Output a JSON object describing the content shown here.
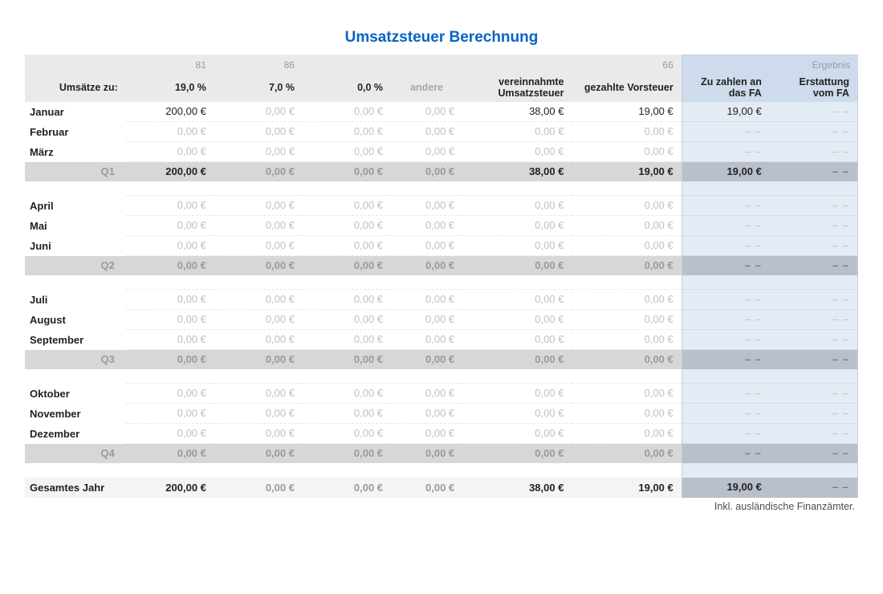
{
  "title": "Umsatzsteuer Berechnung",
  "header": {
    "codes": {
      "c19": "81",
      "c7": "86",
      "cVor": "66"
    },
    "group_label": "Umsätze zu:",
    "c19": "19,0 %",
    "c7": "7,0 %",
    "c0": "0,0 %",
    "other": "andere",
    "collected": "vereinnahmte Umsatzsteuer",
    "paid": "gezahlte Vorsteuer",
    "result_title": "Ergebnis",
    "to_pay": "Zu zahlen an das FA",
    "refund": "Erstattung vom FA"
  },
  "dash": "– –",
  "footnote": "Inkl. ausländische Finanzämter.",
  "rows": [
    {
      "type": "month",
      "label": "Januar",
      "c19": "200,00 €",
      "c19v": true,
      "c7": "0,00 €",
      "c0": "0,00 €",
      "other": "0,00 €",
      "coll": "38,00 €",
      "collv": true,
      "paid": "19,00 €",
      "paidv": true,
      "pay": "19,00 €",
      "payv": true,
      "ref": "– –"
    },
    {
      "type": "month",
      "label": "Februar",
      "c19": "0,00 €",
      "c7": "0,00 €",
      "c0": "0,00 €",
      "other": "0,00 €",
      "coll": "0,00 €",
      "paid": "0,00 €",
      "pay": "– –",
      "ref": "– –"
    },
    {
      "type": "month",
      "label": "März",
      "c19": "0,00 €",
      "c7": "0,00 €",
      "c0": "0,00 €",
      "other": "0,00 €",
      "coll": "0,00 €",
      "paid": "0,00 €",
      "pay": "– –",
      "ref": "– –"
    },
    {
      "type": "q",
      "label": "Q1",
      "c19": "200,00 €",
      "c19v": true,
      "c7": "0,00 €",
      "c0": "0,00 €",
      "other": "0,00 €",
      "coll": "38,00 €",
      "collv": true,
      "paid": "19,00 €",
      "paidv": true,
      "pay": "19,00 €",
      "payv": true,
      "ref": "– –"
    },
    {
      "type": "spacer"
    },
    {
      "type": "month",
      "label": "April",
      "c19": "0,00 €",
      "c7": "0,00 €",
      "c0": "0,00 €",
      "other": "0,00 €",
      "coll": "0,00 €",
      "paid": "0,00 €",
      "pay": "– –",
      "ref": "– –"
    },
    {
      "type": "month",
      "label": "Mai",
      "c19": "0,00 €",
      "c7": "0,00 €",
      "c0": "0,00 €",
      "other": "0,00 €",
      "coll": "0,00 €",
      "paid": "0,00 €",
      "pay": "– –",
      "ref": "– –"
    },
    {
      "type": "month",
      "label": "Juni",
      "c19": "0,00 €",
      "c7": "0,00 €",
      "c0": "0,00 €",
      "other": "0,00 €",
      "coll": "0,00 €",
      "paid": "0,00 €",
      "pay": "– –",
      "ref": "– –"
    },
    {
      "type": "q",
      "label": "Q2",
      "c19": "0,00 €",
      "c7": "0,00 €",
      "c0": "0,00 €",
      "other": "0,00 €",
      "coll": "0,00 €",
      "paid": "0,00 €",
      "pay": "– –",
      "ref": "– –"
    },
    {
      "type": "spacer"
    },
    {
      "type": "month",
      "label": "Juli",
      "c19": "0,00 €",
      "c7": "0,00 €",
      "c0": "0,00 €",
      "other": "0,00 €",
      "coll": "0,00 €",
      "paid": "0,00 €",
      "pay": "– –",
      "ref": "– –"
    },
    {
      "type": "month",
      "label": "August",
      "c19": "0,00 €",
      "c7": "0,00 €",
      "c0": "0,00 €",
      "other": "0,00 €",
      "coll": "0,00 €",
      "paid": "0,00 €",
      "pay": "– –",
      "ref": "– –"
    },
    {
      "type": "month",
      "label": "September",
      "c19": "0,00 €",
      "c7": "0,00 €",
      "c0": "0,00 €",
      "other": "0,00 €",
      "coll": "0,00 €",
      "paid": "0,00 €",
      "pay": "– –",
      "ref": "– –"
    },
    {
      "type": "q",
      "label": "Q3",
      "c19": "0,00 €",
      "c7": "0,00 €",
      "c0": "0,00 €",
      "other": "0,00 €",
      "coll": "0,00 €",
      "paid": "0,00 €",
      "pay": "– –",
      "ref": "– –"
    },
    {
      "type": "spacer"
    },
    {
      "type": "month",
      "label": "Oktober",
      "c19": "0,00 €",
      "c7": "0,00 €",
      "c0": "0,00 €",
      "other": "0,00 €",
      "coll": "0,00 €",
      "paid": "0,00 €",
      "pay": "– –",
      "ref": "– –"
    },
    {
      "type": "month",
      "label": "November",
      "c19": "0,00 €",
      "c7": "0,00 €",
      "c0": "0,00 €",
      "other": "0,00 €",
      "coll": "0,00 €",
      "paid": "0,00 €",
      "pay": "– –",
      "ref": "– –"
    },
    {
      "type": "month",
      "label": "Dezember",
      "c19": "0,00 €",
      "c7": "0,00 €",
      "c0": "0,00 €",
      "other": "0,00 €",
      "coll": "0,00 €",
      "paid": "0,00 €",
      "pay": "– –",
      "ref": "– –"
    },
    {
      "type": "q",
      "label": "Q4",
      "c19": "0,00 €",
      "c7": "0,00 €",
      "c0": "0,00 €",
      "other": "0,00 €",
      "coll": "0,00 €",
      "paid": "0,00 €",
      "pay": "– –",
      "ref": "– –"
    },
    {
      "type": "spacer",
      "nobot": true
    }
  ],
  "year": {
    "label": "Gesamtes Jahr",
    "c19": "200,00 €",
    "c19v": true,
    "c7": "0,00 €",
    "c0": "0,00 €",
    "other": "0,00 €",
    "coll": "38,00 €",
    "collv": true,
    "paid": "19,00 €",
    "paidv": true,
    "pay": "19,00 €",
    "payv": true,
    "ref": "– –"
  }
}
